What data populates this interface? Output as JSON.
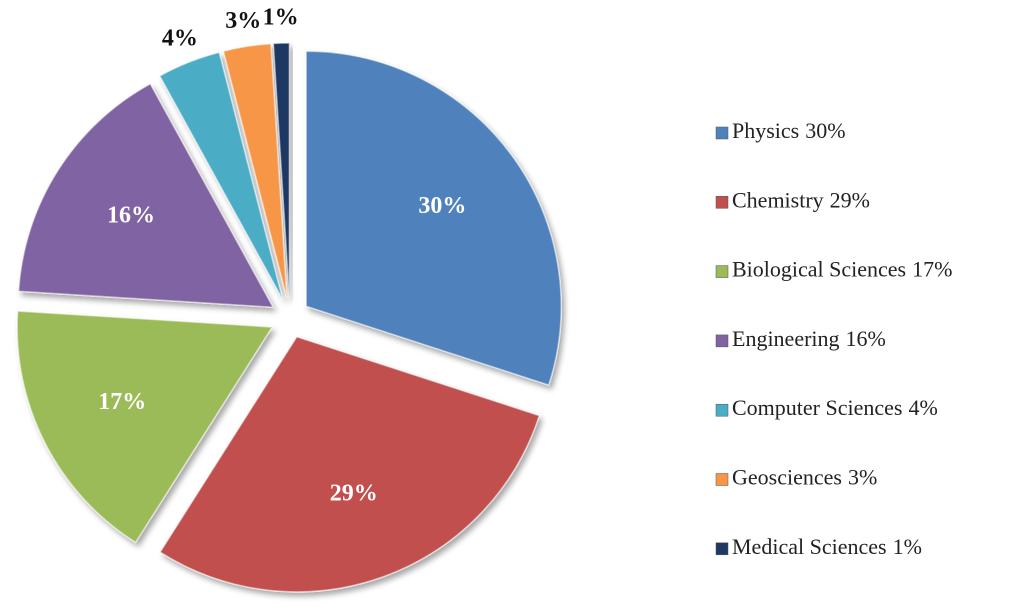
{
  "chart_data": {
    "type": "pie",
    "categories": [
      "Physics",
      "Chemistry",
      "Biological Sciences",
      "Engineering",
      "Computer Sciences",
      "Geosciences",
      "Medical Sciences"
    ],
    "values": [
      30,
      29,
      17,
      16,
      4,
      3,
      1
    ],
    "value_labels": [
      "30%",
      "29%",
      "17%",
      "16%",
      "4%",
      "3%",
      "1%"
    ],
    "colors": [
      "#4f81bd",
      "#c0504d",
      "#9bbb59",
      "#8064a2",
      "#4bacc6",
      "#f79646",
      "#1f3864"
    ],
    "legend": "right"
  }
}
